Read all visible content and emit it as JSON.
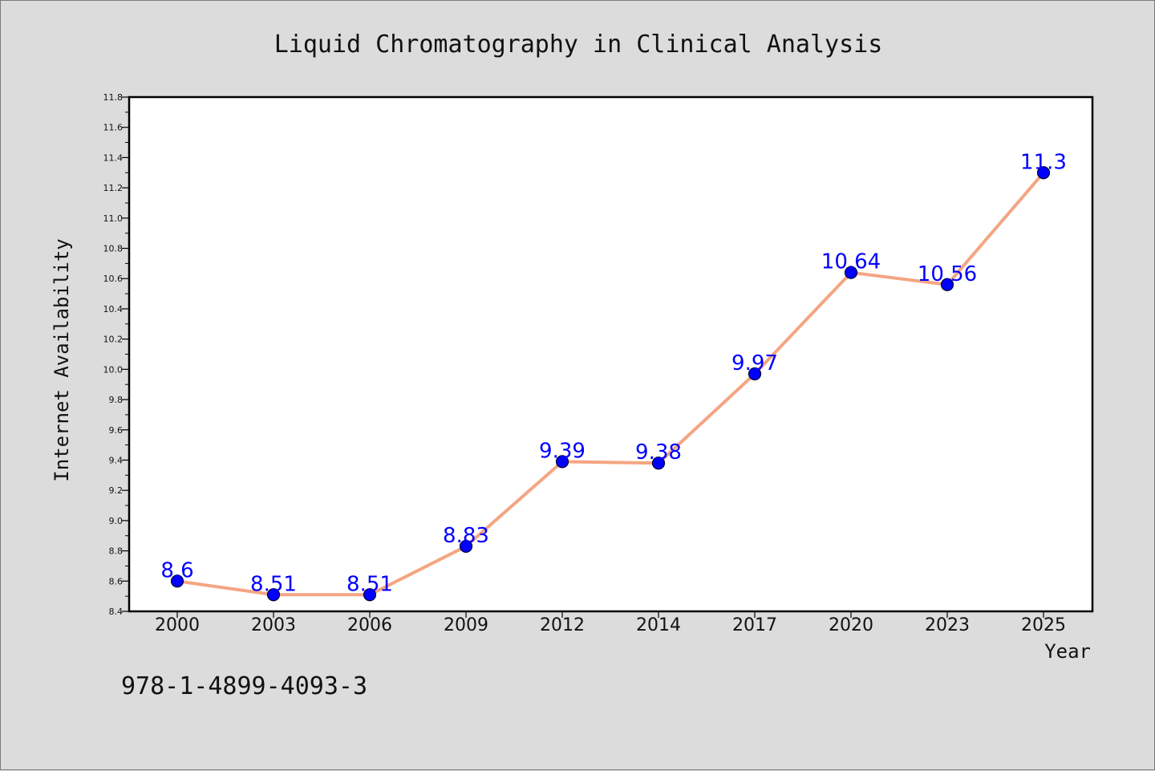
{
  "chart_data": {
    "type": "line",
    "title": "Liquid Chromatography in Clinical Analysis",
    "xlabel": "Year",
    "ylabel": "Internet Availability",
    "categories": [
      "2000",
      "2003",
      "2006",
      "2009",
      "2012",
      "2014",
      "2017",
      "2020",
      "2023",
      "2025"
    ],
    "series": [
      {
        "values": [
          8.6,
          8.51,
          8.51,
          8.83,
          9.39,
          9.38,
          9.97,
          10.64,
          10.56,
          11.3
        ],
        "labels": [
          "8.6",
          "8.51",
          "8.51",
          "8.83",
          "9.39",
          "9.38",
          "9.97",
          "10.64",
          "10.56",
          "11.3"
        ],
        "line_color": "#f4a582",
        "marker_color": "#0000ff"
      }
    ],
    "ylim": [
      8.4,
      11.8
    ],
    "yticks": [
      "8.4",
      "8.6",
      "8.8",
      "9.0",
      "9.2",
      "9.4",
      "9.6",
      "9.8",
      "10.0",
      "10.2",
      "10.4",
      "10.6",
      "10.8",
      "11.0",
      "11.2",
      "11.4",
      "11.6",
      "11.8"
    ],
    "grid": false,
    "label_color": "#0000ff"
  },
  "footer_text": "978-1-4899-4093-3"
}
